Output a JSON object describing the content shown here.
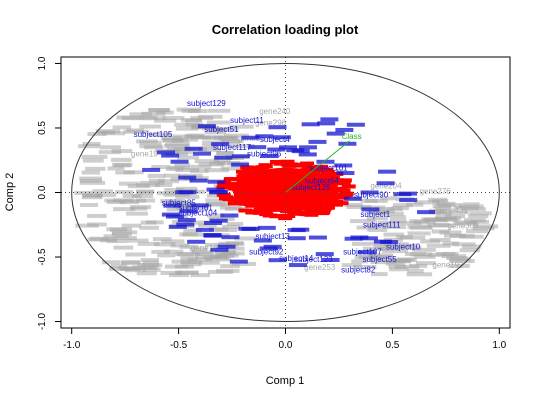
{
  "chart_data": {
    "type": "scatter",
    "title": "Correlation loading plot",
    "xlabel": "Comp 1",
    "ylabel": "Comp 2",
    "xlim": [
      -1.05,
      1.05
    ],
    "ylim": [
      -1.05,
      1.05
    ],
    "x_ticks": [
      "-1.0",
      "-0.5",
      "0.0",
      "0.5",
      "1.0"
    ],
    "y_ticks": [
      "-1.0",
      "-0.5",
      "0.0",
      "0.5",
      "1.0"
    ],
    "reference_lines": {
      "x": 0,
      "y": 0,
      "style": "dotted"
    },
    "circle_radius": 1.0,
    "colors": {
      "genes": "#a6a6a6",
      "subjects": "#1414d2",
      "core": "#ff0000",
      "class": "#22b822"
    },
    "core_cluster": {
      "center": [
        0.0,
        0.02
      ],
      "radius_x": 0.3,
      "radius_y": 0.22
    },
    "class_vector": {
      "label": "Class",
      "x": 0.3,
      "y": 0.4
    },
    "subjects": [
      {
        "label": "subject129",
        "x": -0.37,
        "y": 0.67
      },
      {
        "label": "subject11",
        "x": -0.18,
        "y": 0.54
      },
      {
        "label": "subject51",
        "x": -0.3,
        "y": 0.47
      },
      {
        "label": "subject105",
        "x": -0.62,
        "y": 0.43
      },
      {
        "label": "subject4",
        "x": -0.05,
        "y": 0.39
      },
      {
        "label": "subject117",
        "x": -0.25,
        "y": 0.33
      },
      {
        "label": "subject96",
        "x": -0.1,
        "y": 0.28
      },
      {
        "label": "subject101",
        "x": 0.2,
        "y": 0.17
      },
      {
        "label": "subject64",
        "x": 0.17,
        "y": 0.07
      },
      {
        "label": "subject125",
        "x": 0.12,
        "y": 0.02
      },
      {
        "label": "subject90",
        "x": 0.4,
        "y": -0.04
      },
      {
        "label": "subject85",
        "x": -0.5,
        "y": -0.1
      },
      {
        "label": "subject61",
        "x": -0.42,
        "y": -0.14
      },
      {
        "label": "subject104",
        "x": -0.41,
        "y": -0.18
      },
      {
        "label": "subject1",
        "x": 0.42,
        "y": -0.19
      },
      {
        "label": "subject111",
        "x": 0.45,
        "y": -0.27
      },
      {
        "label": "subject13",
        "x": -0.06,
        "y": -0.36
      },
      {
        "label": "subject10",
        "x": 0.55,
        "y": -0.44
      },
      {
        "label": "subject92",
        "x": -0.09,
        "y": -0.48
      },
      {
        "label": "subject14",
        "x": 0.05,
        "y": -0.53
      },
      {
        "label": "subject107",
        "x": 0.36,
        "y": -0.48
      },
      {
        "label": "subject55",
        "x": 0.44,
        "y": -0.54
      },
      {
        "label": "subject123",
        "x": 0.13,
        "y": -0.54
      },
      {
        "label": "subject82",
        "x": 0.34,
        "y": -0.62
      }
    ],
    "genes": [
      {
        "label": "gene240",
        "x": -0.05,
        "y": 0.61
      },
      {
        "label": "gene296",
        "x": -0.07,
        "y": 0.52
      },
      {
        "label": "gene36",
        "x": -0.16,
        "y": 0.4
      },
      {
        "label": "gene19",
        "x": -0.66,
        "y": 0.28
      },
      {
        "label": "gene276",
        "x": 0.7,
        "y": -0.01
      },
      {
        "label": "gene204",
        "x": 0.47,
        "y": 0.03
      },
      {
        "label": "gene278",
        "x": 0.2,
        "y": 0.13
      },
      {
        "label": "gene431",
        "x": 0.78,
        "y": -0.16
      },
      {
        "label": "gene305",
        "x": 0.83,
        "y": -0.28
      },
      {
        "label": "gene192",
        "x": 0.76,
        "y": -0.58
      },
      {
        "label": "gene253",
        "x": 0.16,
        "y": -0.6
      },
      {
        "label": "gene16",
        "x": -0.38,
        "y": -0.45
      }
    ]
  }
}
